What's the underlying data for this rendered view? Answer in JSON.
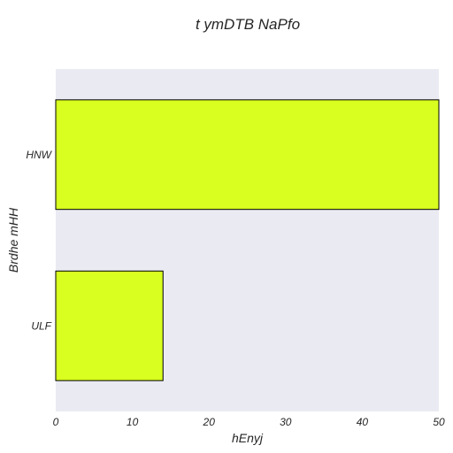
{
  "chart_data": {
    "type": "bar",
    "orientation": "horizontal",
    "title": "t ymDTB  NaPfo",
    "xlabel": "hEnyj",
    "ylabel": "Brdhe mHH",
    "categories": [
      "HNW",
      "ULF"
    ],
    "values": [
      50,
      14
    ],
    "xlim": [
      0,
      50
    ],
    "xticks": [
      0,
      10,
      20,
      30,
      40,
      50
    ],
    "grid": false,
    "bar_color": "#d8ff1f",
    "bar_edge_color": "#000000",
    "plot_background": "#eaeaf2"
  }
}
